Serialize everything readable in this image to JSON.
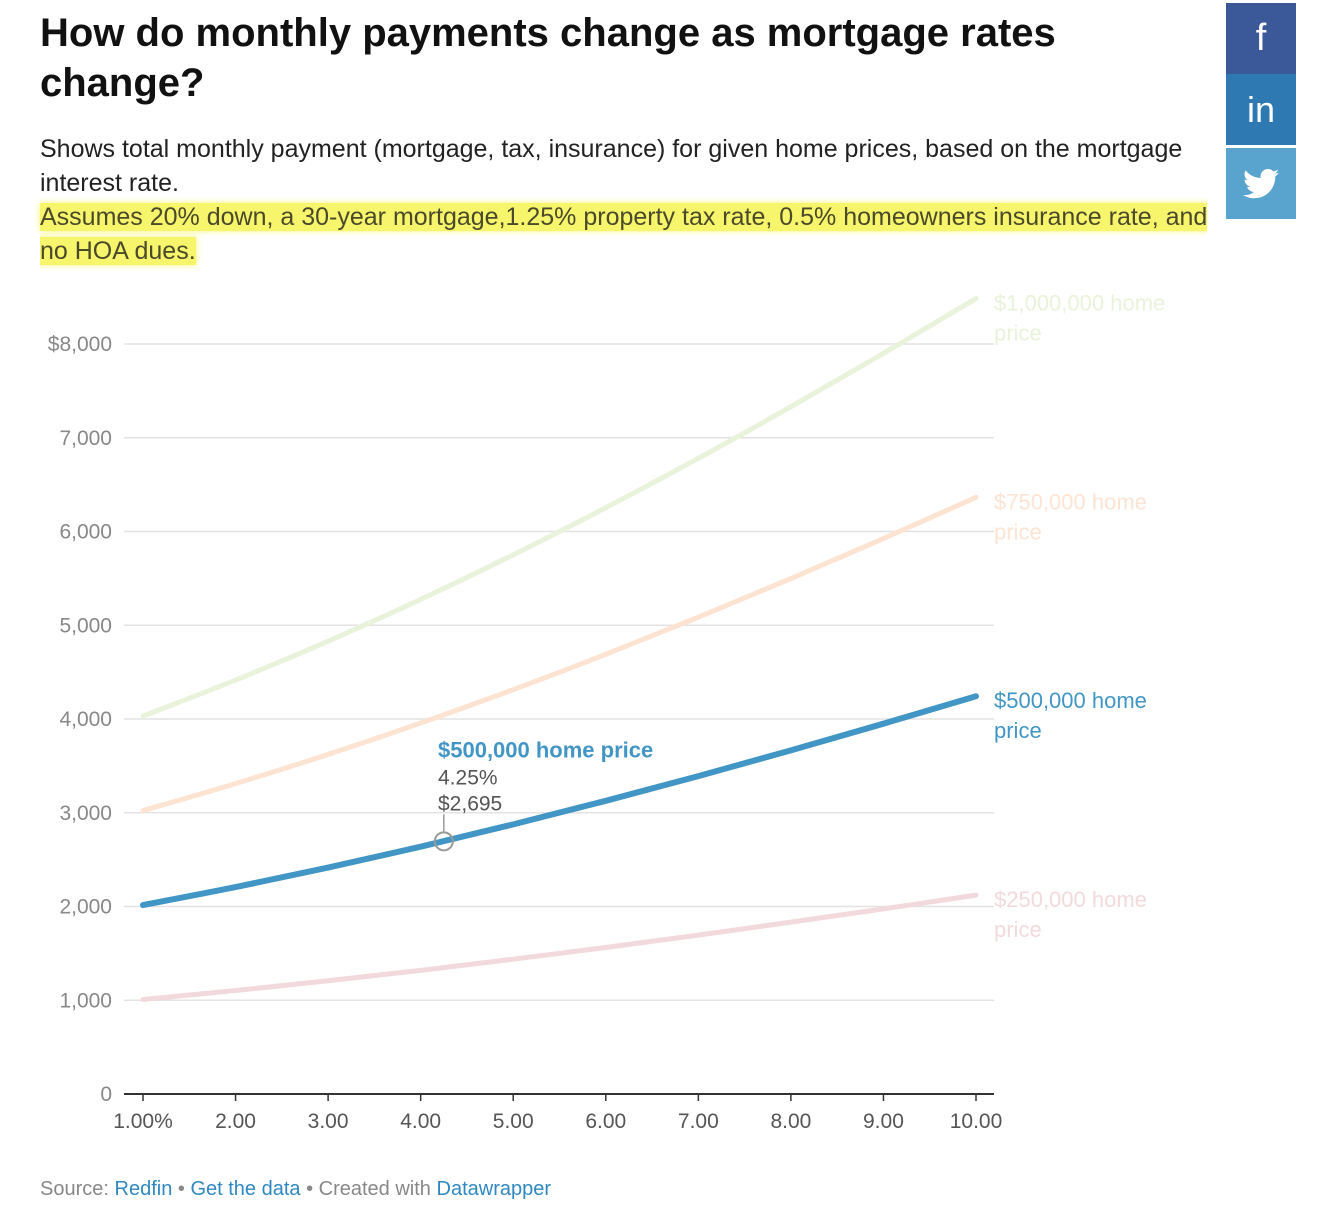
{
  "title": "How do monthly payments change as mortgage rates change?",
  "subtitle": "Shows total monthly payment (mortgage, tax, insurance) for given home prices, based on the mortgage interest rate.",
  "note": "Assumes 20% down, a 30-year mortgage,1.25% property tax rate, 0.5% homeowners insurance rate, and no HOA dues.",
  "social": {
    "facebook": "f",
    "linkedin": "in",
    "twitter_icon": "twitter-bird"
  },
  "footer": {
    "source_prefix": "Source:",
    "source_link": "Redfin",
    "sep1": "•",
    "data_link": "Get the data",
    "sep2": "• Created with",
    "tool_link": "Datawrapper"
  },
  "chart_data": {
    "type": "line",
    "title": "",
    "xlabel": "",
    "ylabel": "",
    "xlim": [
      1,
      10
    ],
    "ylim": [
      0,
      8000
    ],
    "y_ticks": [
      0,
      1000,
      2000,
      3000,
      4000,
      5000,
      6000,
      7000,
      8000
    ],
    "y_tick_labels": [
      "0",
      "1,000",
      "2,000",
      "3,000",
      "4,000",
      "5,000",
      "6,000",
      "7,000",
      "$8,000"
    ],
    "x_ticks": [
      1,
      2,
      3,
      4,
      5,
      6,
      7,
      8,
      9,
      10
    ],
    "x_tick_labels": [
      "1.00%",
      "2.00",
      "3.00",
      "4.00",
      "5.00",
      "6.00",
      "7.00",
      "8.00",
      "9.00",
      "10.00"
    ],
    "grid": true,
    "x": [
      1,
      2,
      3,
      4,
      5,
      6,
      7,
      8,
      9,
      10
    ],
    "series": [
      {
        "name": "$1,000,000 home price",
        "label_lines": [
          "$1,000,000 home",
          "price"
        ],
        "color": "#e9f2da",
        "highlight": false,
        "values": [
          4031,
          4415,
          4830,
          5276,
          5751,
          6254,
          6781,
          7331,
          7900,
          8485
        ]
      },
      {
        "name": "$750,000 home price",
        "label_lines": [
          "$750,000 home",
          "price"
        ],
        "color": "#fde3d2",
        "highlight": false,
        "values": [
          3023,
          3311,
          3623,
          3957,
          4313,
          4690,
          5086,
          5498,
          5925,
          6364
        ]
      },
      {
        "name": "$500,000 home price",
        "label_lines": [
          "$500,000 home",
          "price"
        ],
        "color": "#4196c6",
        "highlight": true,
        "values": [
          2015,
          2207,
          2415,
          2638,
          2876,
          3127,
          3391,
          3665,
          3950,
          4243
        ]
      },
      {
        "name": "$250,000 home price",
        "label_lines": [
          "$250,000 home",
          "price"
        ],
        "color": "#f2dadc",
        "highlight": false,
        "values": [
          1008,
          1104,
          1208,
          1319,
          1438,
          1563,
          1695,
          1833,
          1975,
          2121
        ]
      }
    ],
    "tooltip": {
      "series": "$500,000 home price",
      "x": 4.25,
      "y": 2695,
      "rate_text": "4.25%",
      "value_text": "$2,695"
    }
  }
}
